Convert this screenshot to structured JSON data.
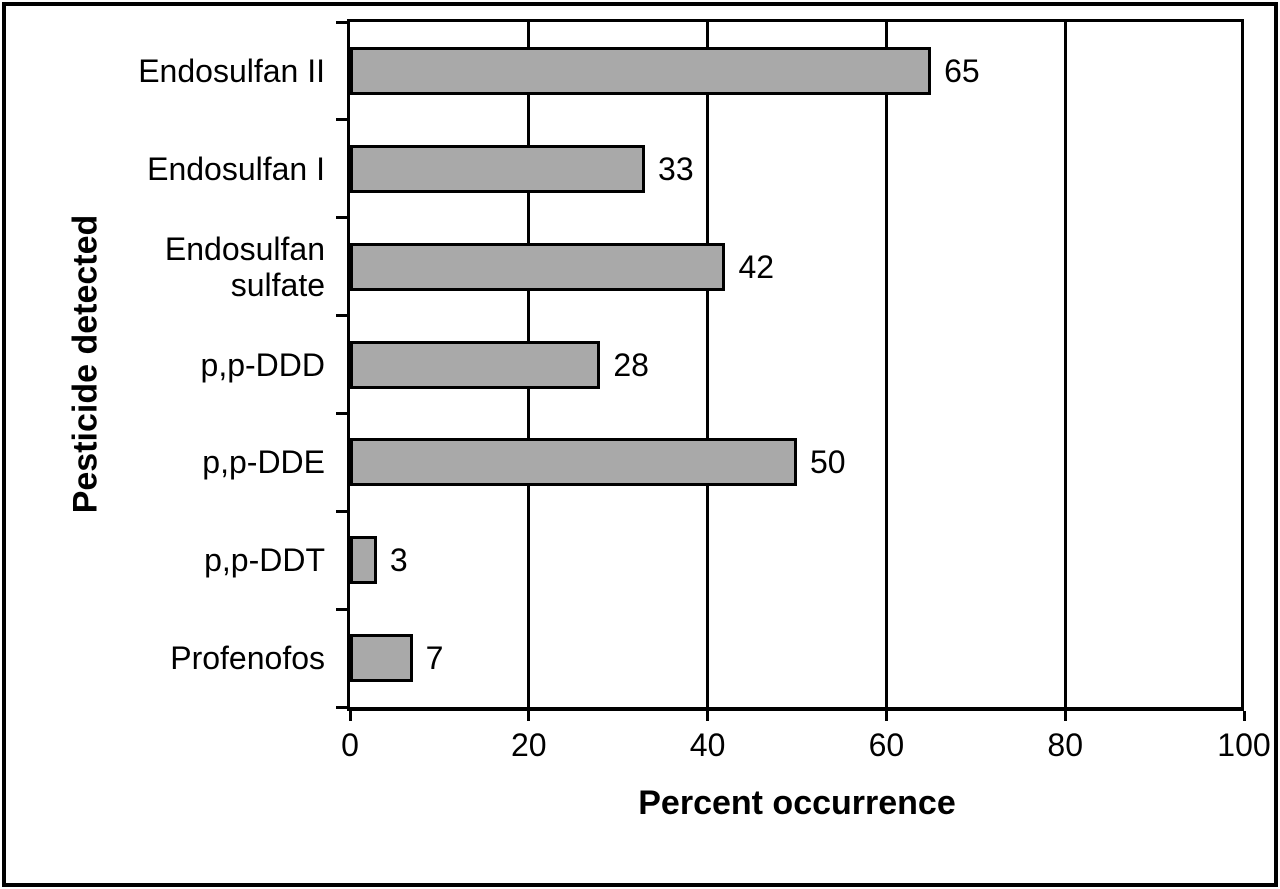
{
  "figure": {
    "background": "#ffffff",
    "frame_color": "#000000"
  },
  "chart_data": {
    "type": "bar",
    "orientation": "horizontal",
    "title": "",
    "xlabel": "Percent occurrence",
    "ylabel": "Pesticide detected",
    "categories": [
      "Endosulfan II",
      "Endosulfan I",
      "Endosulfan sulfate",
      "p,p-DDD",
      "p,p-DDE",
      "p,p-DDT",
      "Profenofos"
    ],
    "values": [
      65,
      33,
      42,
      28,
      50,
      3,
      7
    ],
    "value_labels": [
      "65",
      "33",
      "42",
      "28",
      "50",
      "3",
      "7"
    ],
    "xlim": [
      0,
      100
    ],
    "xticks": [
      0,
      20,
      40,
      60,
      80,
      100
    ],
    "xtick_labels": [
      "0",
      "20",
      "40",
      "60",
      "80",
      "100"
    ],
    "grid": "vertical gridlines at x tick positions",
    "legend": "none",
    "bar_color": "#a9a9a9",
    "bar_border_color": "#000000",
    "axis_color": "#000000"
  }
}
